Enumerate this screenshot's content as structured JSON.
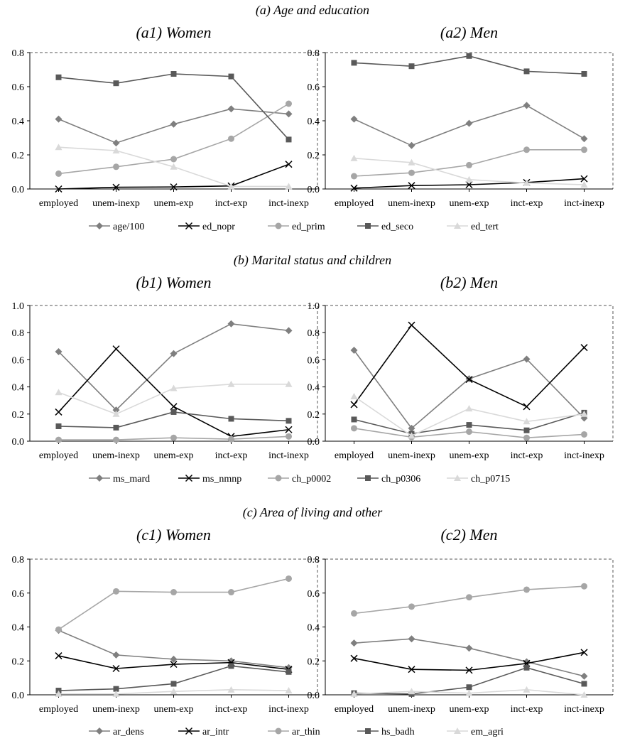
{
  "chart_data": [
    {
      "id": "a1",
      "type": "line",
      "section": "(a) Age and education",
      "title": "(a1) Women",
      "categories": [
        "employed",
        "unem-inexp",
        "unem-exp",
        "inct-exp",
        "inct-inexp"
      ],
      "ylim": [
        0,
        0.8
      ],
      "yticks": [
        "0.0",
        "0.2",
        "0.4",
        "0.6",
        "0.8"
      ],
      "series": [
        {
          "name": "age/100",
          "color": "#7f7f7f",
          "marker": "diamond",
          "values": [
            0.41,
            0.27,
            0.38,
            0.47,
            0.44
          ]
        },
        {
          "name": "ed_nopr",
          "color": "#000000",
          "marker": "x",
          "values": [
            0.0,
            0.01,
            0.012,
            0.018,
            0.145
          ]
        },
        {
          "name": "ed_prim",
          "color": "#a6a6a6",
          "marker": "circle",
          "values": [
            0.09,
            0.13,
            0.175,
            0.295,
            0.5
          ]
        },
        {
          "name": "ed_seco",
          "color": "#595959",
          "marker": "square",
          "values": [
            0.655,
            0.62,
            0.675,
            0.66,
            0.29
          ]
        },
        {
          "name": "ed_tert",
          "color": "#d9d9d9",
          "marker": "triangle",
          "values": [
            0.245,
            0.225,
            0.13,
            0.015,
            0.015
          ]
        }
      ]
    },
    {
      "id": "a2",
      "type": "line",
      "section": "(a) Age and education",
      "title": "(a2) Men",
      "categories": [
        "employed",
        "unem-inexp",
        "unem-exp",
        "inct-exp",
        "inct-inexp"
      ],
      "ylim": [
        0,
        0.8
      ],
      "yticks": [
        "0.0",
        "0.2",
        "0.4",
        "0.6",
        "0.8"
      ],
      "series": [
        {
          "name": "age/100",
          "color": "#7f7f7f",
          "marker": "diamond",
          "values": [
            0.41,
            0.255,
            0.385,
            0.49,
            0.295
          ]
        },
        {
          "name": "ed_nopr",
          "color": "#000000",
          "marker": "x",
          "values": [
            0.005,
            0.02,
            0.025,
            0.038,
            0.06
          ]
        },
        {
          "name": "ed_prim",
          "color": "#a6a6a6",
          "marker": "circle",
          "values": [
            0.075,
            0.095,
            0.14,
            0.23,
            0.23
          ]
        },
        {
          "name": "ed_seco",
          "color": "#595959",
          "marker": "square",
          "values": [
            0.74,
            0.72,
            0.78,
            0.69,
            0.675
          ]
        },
        {
          "name": "ed_tert",
          "color": "#d9d9d9",
          "marker": "triangle",
          "values": [
            0.18,
            0.155,
            0.055,
            0.035,
            0.025
          ]
        }
      ]
    },
    {
      "id": "b1",
      "type": "line",
      "section": "(b) Marital status and children",
      "title": "(b1) Women",
      "categories": [
        "employed",
        "unem-inexp",
        "unem-exp",
        "inct-exp",
        "inct-inexp"
      ],
      "ylim": [
        0,
        1.0
      ],
      "yticks": [
        "0.0",
        "0.2",
        "0.4",
        "0.6",
        "0.8",
        "1.0"
      ],
      "series": [
        {
          "name": "ms_mard",
          "color": "#7f7f7f",
          "marker": "diamond",
          "values": [
            0.66,
            0.23,
            0.645,
            0.865,
            0.815
          ]
        },
        {
          "name": "ms_nmnp",
          "color": "#000000",
          "marker": "x",
          "values": [
            0.215,
            0.68,
            0.255,
            0.035,
            0.085
          ]
        },
        {
          "name": "ch_p0002",
          "color": "#a6a6a6",
          "marker": "circle",
          "values": [
            0.01,
            0.01,
            0.025,
            0.015,
            0.035
          ]
        },
        {
          "name": "ch_p0306",
          "color": "#595959",
          "marker": "square",
          "values": [
            0.11,
            0.1,
            0.215,
            0.165,
            0.15
          ]
        },
        {
          "name": "ch_p0715",
          "color": "#d9d9d9",
          "marker": "triangle",
          "values": [
            0.36,
            0.2,
            0.39,
            0.42,
            0.42
          ]
        }
      ]
    },
    {
      "id": "b2",
      "type": "line",
      "section": "(b) Marital status and children",
      "title": "(b2) Men",
      "categories": [
        "employed",
        "unem-inexp",
        "unem-exp",
        "inct-exp",
        "inct-inexp"
      ],
      "ylim": [
        0,
        1.0
      ],
      "yticks": [
        "0.0",
        "0.2",
        "0.4",
        "0.6",
        "0.8",
        "1.0"
      ],
      "series": [
        {
          "name": "ms_mard",
          "color": "#7f7f7f",
          "marker": "diamond",
          "values": [
            0.67,
            0.095,
            0.46,
            0.605,
            0.17
          ]
        },
        {
          "name": "ms_nmnp",
          "color": "#000000",
          "marker": "x",
          "values": [
            0.27,
            0.855,
            0.455,
            0.255,
            0.69
          ]
        },
        {
          "name": "ch_p0002",
          "color": "#a6a6a6",
          "marker": "circle",
          "values": [
            0.095,
            0.03,
            0.07,
            0.025,
            0.05
          ]
        },
        {
          "name": "ch_p0306",
          "color": "#595959",
          "marker": "square",
          "values": [
            0.16,
            0.055,
            0.12,
            0.08,
            0.21
          ]
        },
        {
          "name": "ch_p0715",
          "color": "#d9d9d9",
          "marker": "triangle",
          "values": [
            0.33,
            0.04,
            0.24,
            0.145,
            0.2
          ]
        }
      ]
    },
    {
      "id": "c1",
      "type": "line",
      "section": "(c) Area of living and other",
      "title": "(c1) Women",
      "categories": [
        "employed",
        "unem-inexp",
        "unem-exp",
        "inct-exp",
        "inct-inexp"
      ],
      "ylim": [
        0,
        0.8
      ],
      "yticks": [
        "0.0",
        "0.2",
        "0.4",
        "0.6",
        "0.8"
      ],
      "series": [
        {
          "name": "ar_dens",
          "color": "#7f7f7f",
          "marker": "diamond",
          "values": [
            0.38,
            0.235,
            0.21,
            0.2,
            0.16
          ]
        },
        {
          "name": "ar_intr",
          "color": "#000000",
          "marker": "x",
          "values": [
            0.23,
            0.155,
            0.18,
            0.19,
            0.15
          ]
        },
        {
          "name": "ar_thin",
          "color": "#a6a6a6",
          "marker": "circle",
          "values": [
            0.385,
            0.61,
            0.605,
            0.605,
            0.685
          ]
        },
        {
          "name": "hs_badh",
          "color": "#595959",
          "marker": "square",
          "values": [
            0.025,
            0.035,
            0.065,
            0.17,
            0.135
          ]
        },
        {
          "name": "em_agri",
          "color": "#d9d9d9",
          "marker": "triangle",
          "values": [
            0.005,
            0.005,
            0.02,
            0.03,
            0.025
          ]
        }
      ]
    },
    {
      "id": "c2",
      "type": "line",
      "section": "(c) Area of living and other",
      "title": "(c2) Men",
      "categories": [
        "employed",
        "unem-inexp",
        "unem-exp",
        "inct-exp",
        "inct-inexp"
      ],
      "ylim": [
        0,
        0.8
      ],
      "yticks": [
        "0.0",
        "0.2",
        "0.4",
        "0.6",
        "0.8"
      ],
      "series": [
        {
          "name": "ar_dens",
          "color": "#7f7f7f",
          "marker": "diamond",
          "values": [
            0.305,
            0.33,
            0.275,
            0.195,
            0.11
          ]
        },
        {
          "name": "ar_intr",
          "color": "#000000",
          "marker": "x",
          "values": [
            0.215,
            0.15,
            0.145,
            0.185,
            0.25
          ]
        },
        {
          "name": "ar_thin",
          "color": "#a6a6a6",
          "marker": "circle",
          "values": [
            0.48,
            0.52,
            0.575,
            0.62,
            0.64
          ]
        },
        {
          "name": "hs_badh",
          "color": "#595959",
          "marker": "square",
          "values": [
            0.01,
            0.005,
            0.045,
            0.16,
            0.065
          ]
        },
        {
          "name": "em_agri",
          "color": "#d9d9d9",
          "marker": "triangle",
          "values": [
            0.005,
            0.02,
            0.01,
            0.03,
            0.0
          ]
        }
      ]
    }
  ]
}
